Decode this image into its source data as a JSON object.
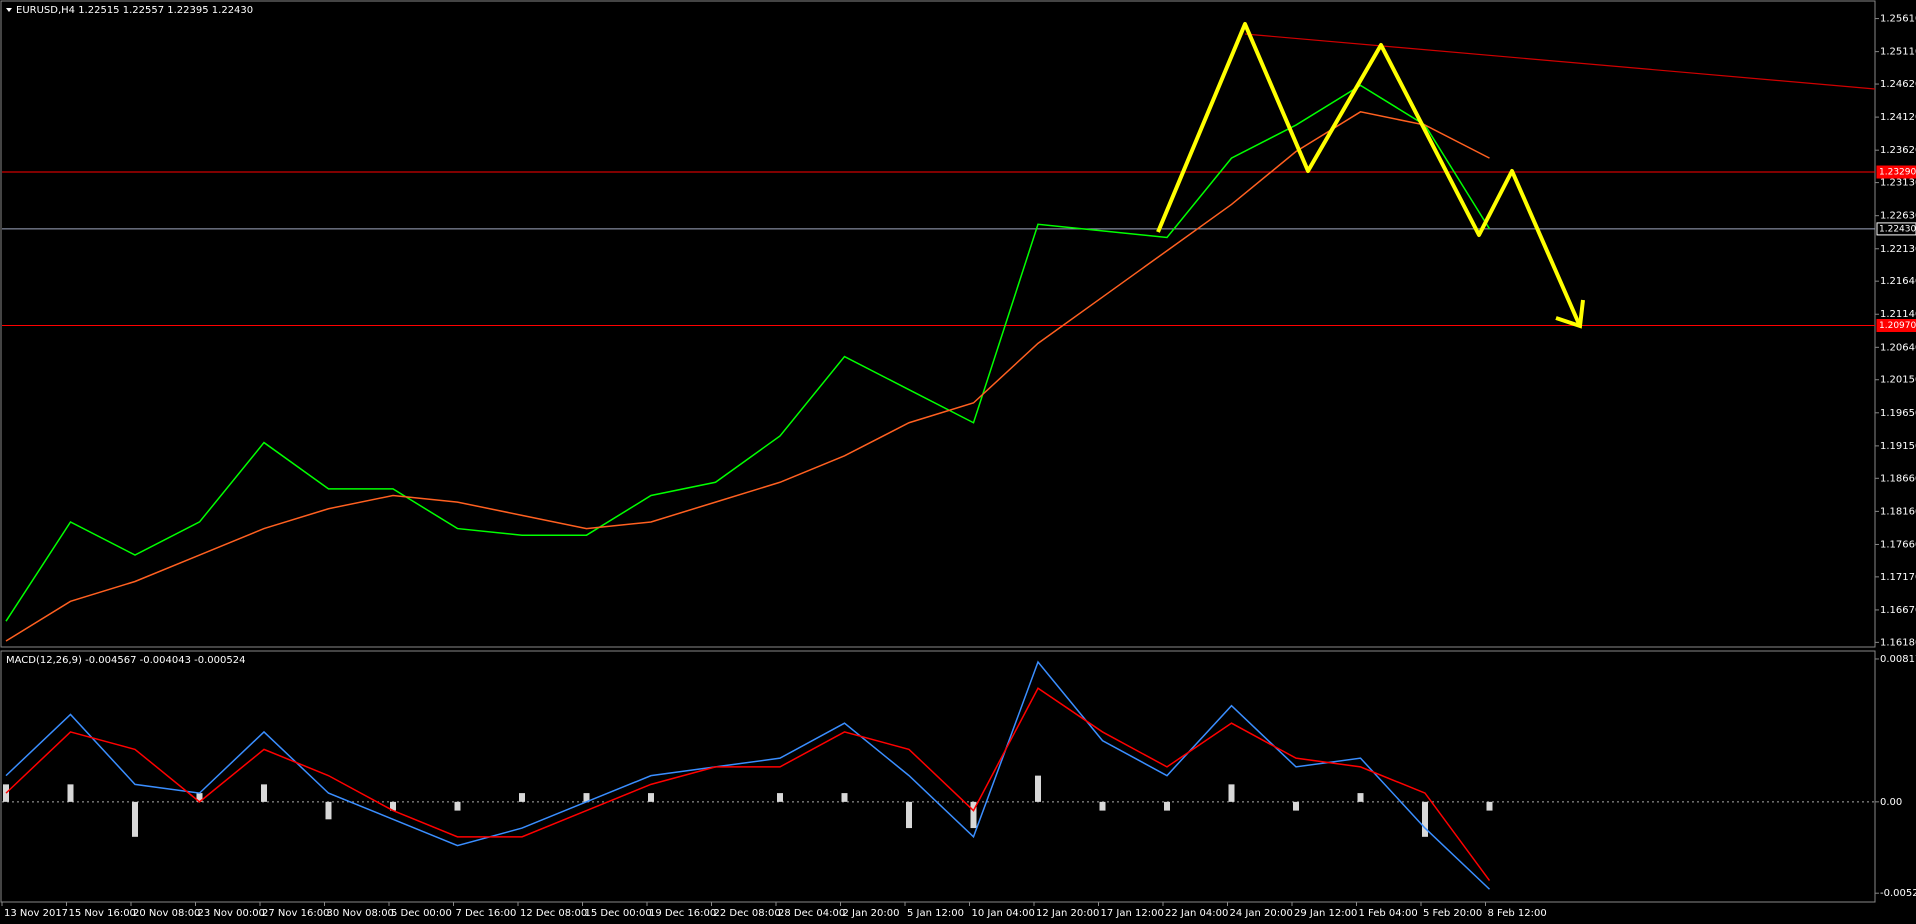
{
  "chart_data": [
    {
      "type": "line",
      "title": "EURUSD,H4  1.22515 1.22557 1.22395 1.22430",
      "categories": [
        "13 Nov 2017",
        "15 Nov 16:00",
        "20 Nov 08:00",
        "23 Nov 00:00",
        "27 Nov 16:00",
        "30 Nov 08:00",
        "5 Dec 00:00",
        "7 Dec 16:00",
        "12 Dec 08:00",
        "15 Dec 00:00",
        "19 Dec 16:00",
        "22 Dec 08:00",
        "28 Dec 04:00",
        "2 Jan 20:00",
        "5 Jan 12:00",
        "10 Jan 04:00",
        "12 Jan 20:00",
        "17 Jan 12:00",
        "22 Jan 04:00",
        "24 Jan 20:00",
        "29 Jan 12:00",
        "1 Feb 04:00",
        "5 Feb 20:00",
        "8 Feb 12:00"
      ],
      "series": [
        {
          "color": "#00ff00",
          "values": [
            1.165,
            1.18,
            1.175,
            1.18,
            1.192,
            1.185,
            1.185,
            1.179,
            1.178,
            1.178,
            1.184,
            1.186,
            1.193,
            1.205,
            1.2,
            1.195,
            1.225,
            1.224,
            1.223,
            1.235,
            1.24,
            1.246,
            1.24,
            1.2243
          ]
        },
        {
          "color": "#ff6020",
          "values": [
            1.162,
            1.168,
            1.171,
            1.175,
            1.179,
            1.182,
            1.184,
            1.183,
            1.181,
            1.179,
            1.18,
            1.183,
            1.186,
            1.19,
            1.195,
            1.198,
            1.207,
            1.214,
            1.221,
            1.228,
            1.236,
            1.242,
            1.24,
            1.235
          ]
        }
      ],
      "ylim": [
        1.1614,
        1.2583
      ],
      "yticks": [
        {
          "value": 1.2561,
          "label": "1.25610"
        },
        {
          "value": 1.2511,
          "label": "1.25110"
        },
        {
          "value": 1.2462,
          "label": "1.24620"
        },
        {
          "value": 1.2412,
          "label": "1.24120"
        },
        {
          "value": 1.2362,
          "label": "1.23620"
        },
        {
          "value": 1.2313,
          "label": "1.23130"
        },
        {
          "value": 1.2263,
          "label": "1.22630"
        },
        {
          "value": 1.2213,
          "label": "1.22130"
        },
        {
          "value": 1.2164,
          "label": "1.21640"
        },
        {
          "value": 1.2114,
          "label": "1.21140"
        },
        {
          "value": 1.2064,
          "label": "1.20640"
        },
        {
          "value": 1.2015,
          "label": "1.20150"
        },
        {
          "value": 1.1965,
          "label": "1.19650"
        },
        {
          "value": 1.1915,
          "label": "1.19150"
        },
        {
          "value": 1.1866,
          "label": "1.18660"
        },
        {
          "value": 1.1816,
          "label": "1.18160"
        },
        {
          "value": 1.1766,
          "label": "1.17660"
        },
        {
          "value": 1.1717,
          "label": "1.17170"
        },
        {
          "value": 1.1667,
          "label": "1.16670"
        },
        {
          "value": 1.1618,
          "label": "1.16180"
        }
      ],
      "levels": [
        {
          "value": 1.2329,
          "label": "1.23290",
          "color": "#ff0000"
        },
        {
          "value": 1.2243,
          "label": "1.22430",
          "color": "#a0a8c0"
        },
        {
          "value": 1.2097,
          "label": "1.20970",
          "color": "#ff0000"
        }
      ]
    },
    {
      "type": "line",
      "title": "MACD(12,26,9) -0.004567 -0.004043 -0.000524",
      "series": [
        {
          "type": "bar",
          "color": "#d8d8d8",
          "values": [
            0.001,
            0.001,
            -0.002,
            0.0005,
            0.001,
            -0.001,
            -0.0005,
            -0.0005,
            0.0005,
            0.0005,
            0.0005,
            0,
            0.0005,
            0.0005,
            -0.0015,
            -0.0015,
            0.0015,
            -0.0005,
            -0.0005,
            0.001,
            -0.0005,
            0.0005,
            -0.002,
            -0.0005
          ]
        },
        {
          "color": "#3a8eff",
          "values": [
            0.0015,
            0.005,
            0.001,
            0.0005,
            0.004,
            0.0005,
            -0.001,
            -0.0025,
            -0.0015,
            0,
            0.0015,
            0.002,
            0.0025,
            0.0045,
            0.0015,
            -0.002,
            0.008,
            0.0035,
            0.0015,
            0.0055,
            0.002,
            0.0025,
            -0.0015,
            -0.005
          ]
        },
        {
          "color": "#ff0000",
          "values": [
            0.0005,
            0.004,
            0.003,
            0,
            0.003,
            0.0015,
            -0.0005,
            -0.002,
            -0.002,
            -0.0005,
            0.001,
            0.002,
            0.002,
            0.004,
            0.003,
            -0.0005,
            0.0065,
            0.004,
            0.002,
            0.0045,
            0.0025,
            0.002,
            0.0005,
            -0.0045
          ]
        }
      ],
      "ylim": [
        -0.0055,
        0.0084
      ],
      "yticks": [
        {
          "value": 0.008173,
          "label": "0.008173"
        },
        {
          "value": 0,
          "label": "0.00"
        },
        {
          "value": -0.005225,
          "label": "-0.005225"
        }
      ]
    }
  ]
}
